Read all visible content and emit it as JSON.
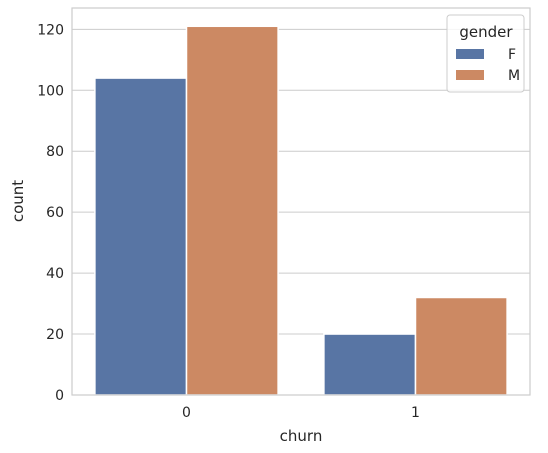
{
  "chart_data": {
    "type": "bar",
    "categories": [
      "0",
      "1"
    ],
    "series": [
      {
        "name": "F",
        "values": [
          104,
          20
        ],
        "color": "#5875a4"
      },
      {
        "name": "M",
        "values": [
          121,
          32
        ],
        "color": "#cc8963"
      }
    ],
    "title": "",
    "xlabel": "churn",
    "ylabel": "count",
    "ylim": [
      0,
      127
    ],
    "yticks": [
      0,
      20,
      40,
      60,
      80,
      100,
      120
    ],
    "grid": "horizontal",
    "legend": {
      "title": "gender",
      "placement": "top-right"
    }
  }
}
